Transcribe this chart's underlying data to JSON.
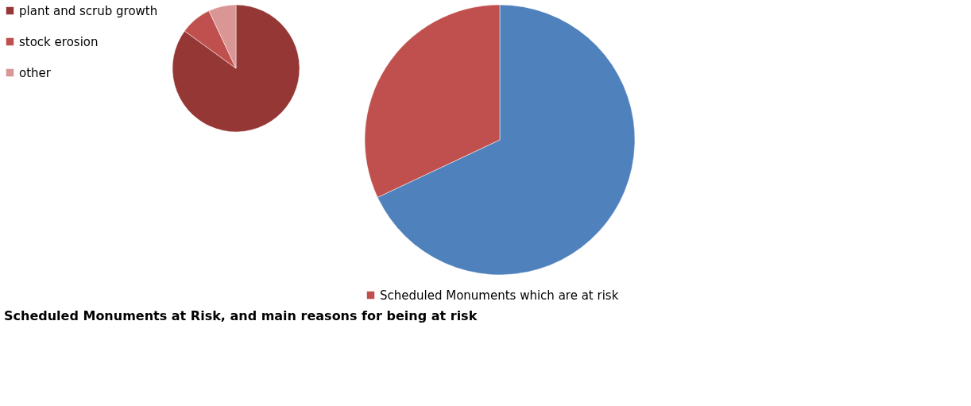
{
  "chart_data": [
    {
      "type": "pie",
      "title": "Scheduled Monuments at Risk, and main reasons for being at risk",
      "categories": [
        "plant and scrub growth",
        "stock erosion",
        "other"
      ],
      "values": [
        85,
        8,
        7
      ],
      "colors": [
        "#953735",
        "#c0504d",
        "#d99694"
      ],
      "legend": "left"
    },
    {
      "type": "pie",
      "categories": [
        null,
        "Scheduled Monuments which are at risk"
      ],
      "values": [
        68,
        32
      ],
      "colors": [
        "#4f81bd",
        "#c0504d"
      ],
      "legend": "bottom"
    }
  ]
}
